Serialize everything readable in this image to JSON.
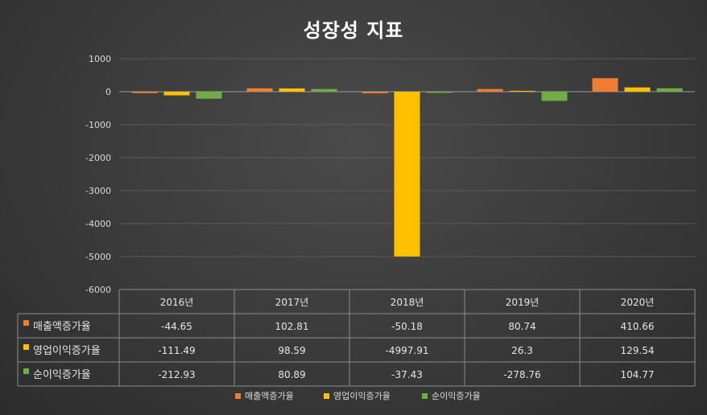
{
  "chart_data": {
    "type": "bar",
    "title": "성장성 지표",
    "categories": [
      "2016년",
      "2017년",
      "2018년",
      "2019년",
      "2020년"
    ],
    "series": [
      {
        "name": "매출액증가율",
        "values": [
          -44.65,
          102.81,
          -50.18,
          80.74,
          410.66
        ],
        "color": "#ed7d31"
      },
      {
        "name": "영업이익증가율",
        "values": [
          -111.49,
          98.59,
          -4997.91,
          26.3,
          129.54
        ],
        "color": "#ffc000"
      },
      {
        "name": "순이익증가율",
        "values": [
          -212.93,
          80.89,
          -37.43,
          -278.76,
          104.77
        ],
        "color": "#70ad47"
      }
    ],
    "yticks": [
      1000,
      0,
      -1000,
      -2000,
      -3000,
      -4000,
      -5000,
      -6000
    ],
    "ylim": [
      -6000,
      1000
    ],
    "grid": true,
    "legend": "bottom",
    "data_table": true
  }
}
